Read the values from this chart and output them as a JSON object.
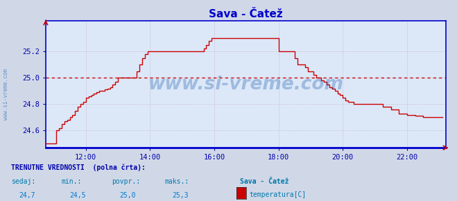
{
  "title": "Sava - Čatež",
  "title_color": "#0000cc",
  "bg_color": "#d0d8e8",
  "plot_bg_color": "#dce8f8",
  "grid_color": "#c8a8c8",
  "line_color": "#cc0000",
  "axis_color": "#0000cc",
  "tick_color": "#0000aa",
  "hline_color": "#cc0000",
  "hline_value": 25.0,
  "ylim": [
    24.47,
    25.43
  ],
  "yticks": [
    24.6,
    24.8,
    25.0,
    25.2
  ],
  "xlim_start": 10.75,
  "xlim_end": 23.2,
  "xticks": [
    12,
    14,
    16,
    18,
    20,
    22
  ],
  "xtick_labels": [
    "12:00",
    "14:00",
    "16:00",
    "18:00",
    "20:00",
    "22:00"
  ],
  "watermark": "www.si-vreme.com",
  "watermark_color": "#1155aa",
  "watermark_alpha": 0.3,
  "sidebar_text": "www.si-vreme.com",
  "footer_line1": "TRENUTNE VREDNOSTI  (polna črta):",
  "footer_labels": [
    "sedaj:",
    "min.:",
    "povpr.:",
    "maks.:"
  ],
  "footer_values": [
    "24,7",
    "24,5",
    "25,0",
    "25,3"
  ],
  "footer_station": "Sava - Čatež",
  "footer_legend": "temperatura[C]",
  "footer_color": "#0000aa",
  "footer_label_color": "#0077aa",
  "footer_value_color": "#0077cc",
  "legend_square_color": "#cc0000",
  "times": [
    10.75,
    11.0,
    11.083,
    11.167,
    11.25,
    11.333,
    11.417,
    11.5,
    11.583,
    11.667,
    11.75,
    11.833,
    11.917,
    12.0,
    12.083,
    12.167,
    12.25,
    12.333,
    12.417,
    12.5,
    12.583,
    12.667,
    12.75,
    12.833,
    12.917,
    13.0,
    13.083,
    13.167,
    13.25,
    13.333,
    13.5,
    13.583,
    13.667,
    13.75,
    13.833,
    13.917,
    14.0,
    14.083,
    14.5,
    15.5,
    15.583,
    15.667,
    15.75,
    15.833,
    15.917,
    16.0,
    16.5,
    17.0,
    17.5,
    17.583,
    17.667,
    18.0,
    18.083,
    18.167,
    18.25,
    18.333,
    18.5,
    18.583,
    18.667,
    18.75,
    18.833,
    18.917,
    19.0,
    19.083,
    19.167,
    19.25,
    19.333,
    19.417,
    19.5,
    19.583,
    19.667,
    19.75,
    19.833,
    19.917,
    20.0,
    20.083,
    20.167,
    20.333,
    20.5,
    20.667,
    21.0,
    21.083,
    21.167,
    21.25,
    21.5,
    21.75,
    22.0,
    22.25,
    22.5,
    22.75,
    23.0,
    23.1
  ],
  "temps": [
    24.5,
    24.5,
    24.6,
    24.62,
    24.65,
    24.67,
    24.68,
    24.7,
    24.72,
    24.75,
    24.78,
    24.8,
    24.82,
    24.85,
    24.86,
    24.87,
    24.88,
    24.89,
    24.9,
    24.9,
    24.91,
    24.92,
    24.93,
    24.95,
    24.97,
    25.0,
    25.0,
    25.0,
    25.0,
    25.0,
    25.0,
    25.05,
    25.1,
    25.15,
    25.18,
    25.2,
    25.2,
    25.2,
    25.2,
    25.2,
    25.2,
    25.22,
    25.25,
    25.28,
    25.3,
    25.3,
    25.3,
    25.3,
    25.3,
    25.3,
    25.3,
    25.2,
    25.2,
    25.2,
    25.2,
    25.2,
    25.15,
    25.1,
    25.1,
    25.1,
    25.08,
    25.05,
    25.05,
    25.02,
    25.0,
    25.0,
    24.98,
    24.97,
    24.95,
    24.93,
    24.92,
    24.9,
    24.88,
    24.87,
    24.85,
    24.83,
    24.82,
    24.8,
    24.8,
    24.8,
    24.8,
    24.8,
    24.8,
    24.78,
    24.76,
    24.73,
    24.72,
    24.71,
    24.7,
    24.7,
    24.7,
    24.7
  ]
}
